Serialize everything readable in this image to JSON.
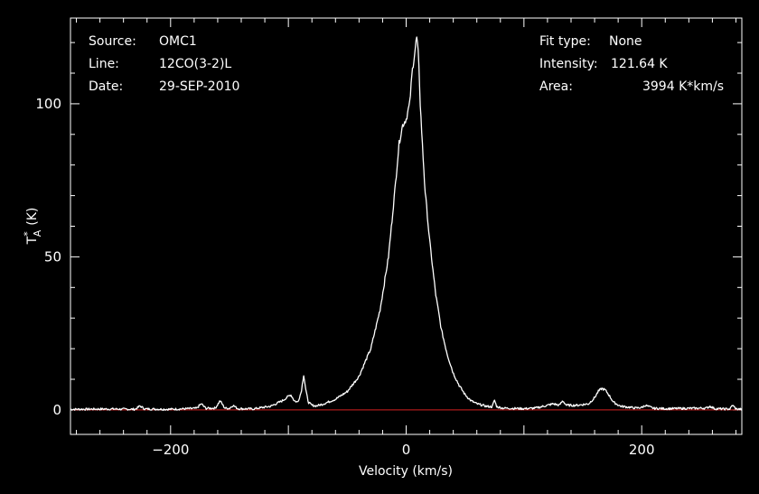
{
  "info_left": [
    {
      "key": "Source:",
      "value": "OMC1"
    },
    {
      "key": "Line:",
      "value": "12CO(3-2)L"
    },
    {
      "key": "Date:",
      "value": "29-SEP-2010"
    }
  ],
  "info_right": [
    {
      "key": "Fit type:",
      "value": "None"
    },
    {
      "key": "Intensity:",
      "value": "121.64 K"
    },
    {
      "key": "Area:",
      "value": "3994 K*km/s"
    }
  ],
  "colors": {
    "background": "#000000",
    "spectrum": "#ffffff",
    "baseline": "#d42020",
    "axes": "#ffffff"
  },
  "chart_data": {
    "type": "line",
    "xlabel": "Velocity (km/s)",
    "ylabel_main": "T",
    "ylabel_sup": "*",
    "ylabel_sub": "A",
    "ylabel_unit": "(K)",
    "xlim": [
      -285,
      285
    ],
    "ylim": [
      -8,
      128
    ],
    "x_ticks": [
      -200,
      0,
      200
    ],
    "x_tick_labels": [
      "−200",
      "0",
      "200"
    ],
    "y_ticks": [
      0,
      50,
      100
    ],
    "y_tick_labels": [
      "0",
      "50",
      "100"
    ],
    "grid": false,
    "baseline": 0,
    "series": [
      {
        "x": [
          -285,
          -250,
          -230,
          -226,
          -222,
          -200,
          -178,
          -174,
          -170,
          -162,
          -158,
          -154,
          -150,
          -147,
          -143,
          -130,
          -115,
          -105,
          -98,
          -95,
          -92,
          -89,
          -87,
          -85,
          -83,
          -80,
          -76,
          -70,
          -60,
          -50,
          -40,
          -30,
          -22,
          -15,
          -10,
          -6,
          -3,
          0,
          3,
          5,
          7,
          8,
          9,
          10,
          11,
          12,
          14,
          16,
          20,
          25,
          30,
          35,
          40,
          45,
          50,
          55,
          60,
          68,
          73,
          75,
          77,
          82,
          100,
          110,
          120,
          125,
          130,
          133,
          136,
          145,
          155,
          160,
          163,
          166,
          169,
          172,
          176,
          182,
          195,
          200,
          203,
          210,
          220,
          240,
          255,
          258,
          262,
          270,
          275,
          277,
          280,
          285
        ],
        "y": [
          0.2,
          0.3,
          0.2,
          1.3,
          0.3,
          0.2,
          0.5,
          2.0,
          0.5,
          0.6,
          3.0,
          0.6,
          0.5,
          1.5,
          0.4,
          0.3,
          1.2,
          3.0,
          5.0,
          3.0,
          2.5,
          6.0,
          11.5,
          6.0,
          2.5,
          1.5,
          1.3,
          2.0,
          3.5,
          6.0,
          11.0,
          20.0,
          33.0,
          50.0,
          70.0,
          87.0,
          93.0,
          95.0,
          100.0,
          110.0,
          116.0,
          119.0,
          121.6,
          118.0,
          110.0,
          100.0,
          85.0,
          72.0,
          55.0,
          38.0,
          26.0,
          18.0,
          12.0,
          8.0,
          5.0,
          3.0,
          2.0,
          1.2,
          1.0,
          3.2,
          1.0,
          0.6,
          0.4,
          0.6,
          1.5,
          2.0,
          1.5,
          3.0,
          1.5,
          1.5,
          2.0,
          4.0,
          6.0,
          7.0,
          6.5,
          5.0,
          2.5,
          1.2,
          0.6,
          0.8,
          1.5,
          0.5,
          0.4,
          0.5,
          0.6,
          1.2,
          0.4,
          0.3,
          0.3,
          1.6,
          0.3,
          0.2
        ]
      }
    ]
  }
}
